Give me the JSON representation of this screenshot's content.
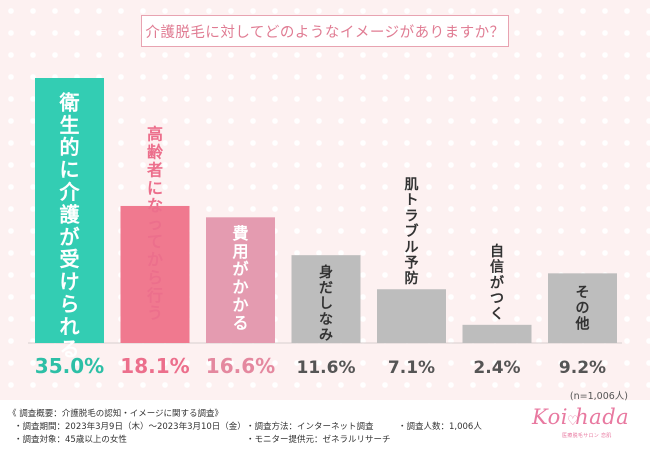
{
  "title": "介護脱毛に対してどのようなイメージがありますか？",
  "chart_data": {
    "type": "bar",
    "categories": [
      "衛生的に介護が受けられる",
      "高齢者になってから行う",
      "費用がかかる",
      "身だしなみ",
      "肌トラブル予防",
      "自信がつく",
      "その他"
    ],
    "values": [
      35.0,
      18.1,
      16.6,
      11.6,
      7.1,
      2.4,
      9.2
    ],
    "value_labels": [
      "35.0%",
      "18.1%",
      "16.6%",
      "11.6%",
      "7.1%",
      "2.4%",
      "9.2%"
    ],
    "ylim": [
      0,
      35
    ],
    "colors": [
      "#33cdb3",
      "#f0798f",
      "#e49bb0",
      "#bdbdbd",
      "#bdbdbd",
      "#bdbdbd",
      "#bdbdbd"
    ],
    "label_colors": [
      "#ffffff",
      "#ec6f8c",
      "#ffffff",
      "#333333",
      "#333333",
      "#333333",
      "#333333"
    ],
    "value_colors": [
      "#2dbfa6",
      "#ec6f8c",
      "#e4889f",
      "#555555",
      "#555555",
      "#555555",
      "#555555"
    ],
    "grid": false,
    "legend": "none"
  },
  "sample_note": "(n=1,006人)",
  "footer": {
    "heading": "《 調査概要：介護脱毛の認知・イメージに関する調査》",
    "period": "・調査期間：2023年3月9日（木）〜2023年3月10日（金）",
    "target": "・調査対象：45歳以上の女性",
    "method": "・調査方法：インターネット調査",
    "provider": "・モニター提供元：ゼネラルリサーチ",
    "count": "・調査人数：1,006人"
  },
  "logo": {
    "text": "Koi hada",
    "subtitle": "医療脱毛サロン 恋肌"
  },
  "colors": {
    "background": "#fdf1f1",
    "title": "#e07c93",
    "accent": "#e879a0"
  }
}
